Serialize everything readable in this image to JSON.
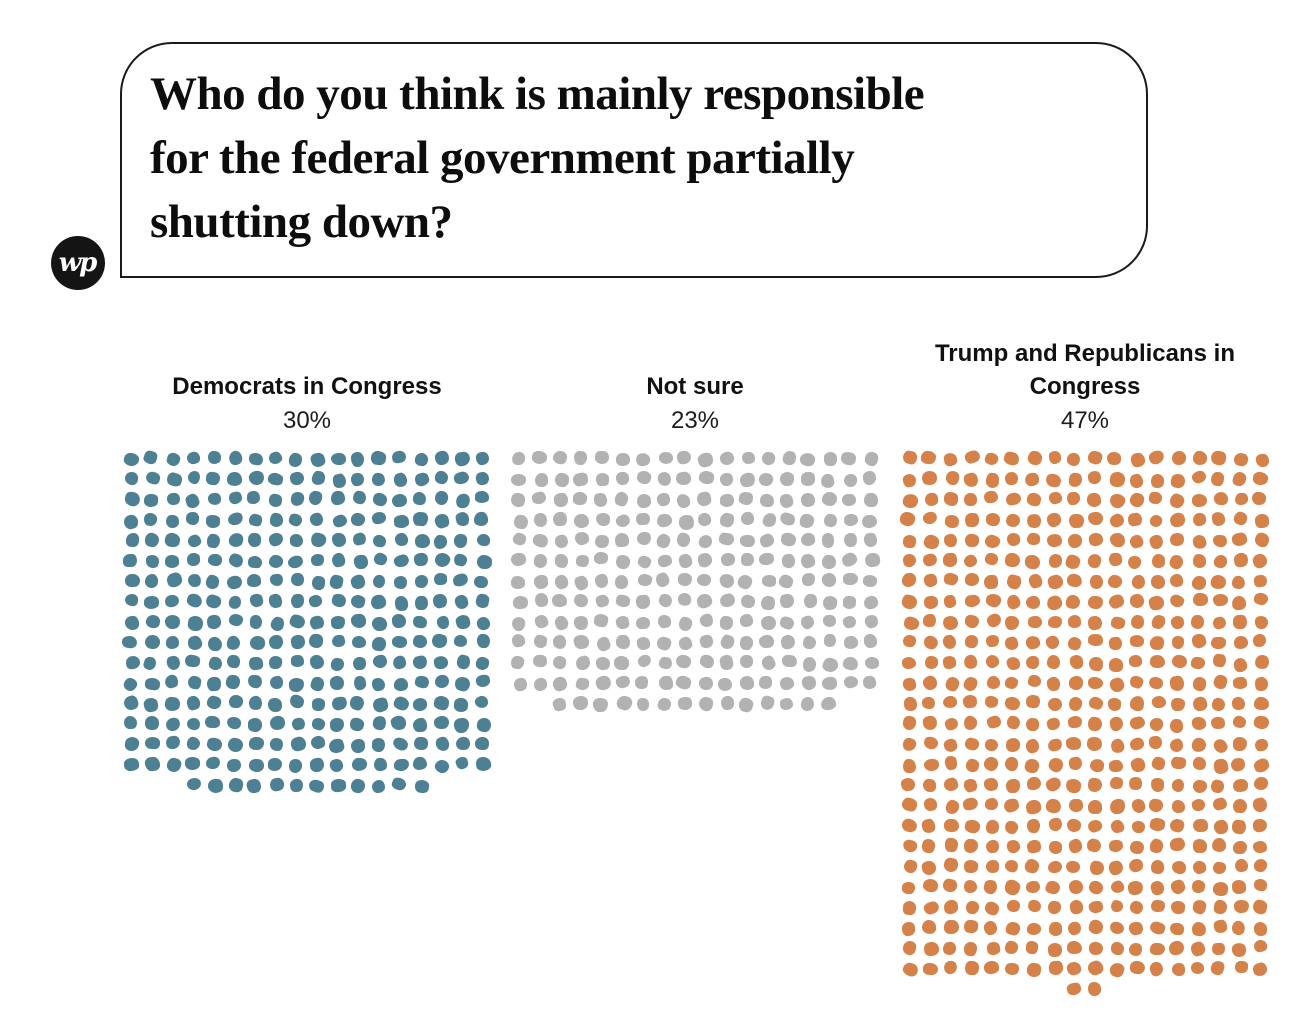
{
  "logo": {
    "text": "wp"
  },
  "question_bubble": {
    "lines": [
      "Who do you think is mainly responsible",
      "for the federal government partially",
      "shutting down?"
    ]
  },
  "chart_data": {
    "type": "waffle-dot",
    "title": "Who do you think is mainly responsible for the federal government partially shutting down?",
    "categories": [
      "Democrats in Congress",
      "Not sure",
      "Trump and Republicans in Congress"
    ],
    "values": [
      30,
      23,
      47
    ],
    "value_labels": [
      "30%",
      "23%",
      "47%"
    ],
    "unit": "percent",
    "dots_per_point": 10,
    "dots_per_row": 18,
    "legend_position": "none",
    "grid": false,
    "colors": {
      "democrats": "#4e8094",
      "not_sure": "#b2b2b2",
      "trump_republicans": "#d5824a"
    }
  },
  "groups": [
    {
      "id": "democrats",
      "label": "Democrats in Congress",
      "value": 30,
      "value_label": "30%",
      "color": "#4e8094",
      "dot_count": 300
    },
    {
      "id": "not-sure",
      "label": "Not sure",
      "value": 23,
      "value_label": "23%",
      "color": "#b2b2b2",
      "dot_count": 230
    },
    {
      "id": "trump-republicans",
      "label": "Trump and Republicans in Congress",
      "value": 47,
      "value_label": "47%",
      "color": "#d5824a",
      "dot_count": 470
    }
  ]
}
